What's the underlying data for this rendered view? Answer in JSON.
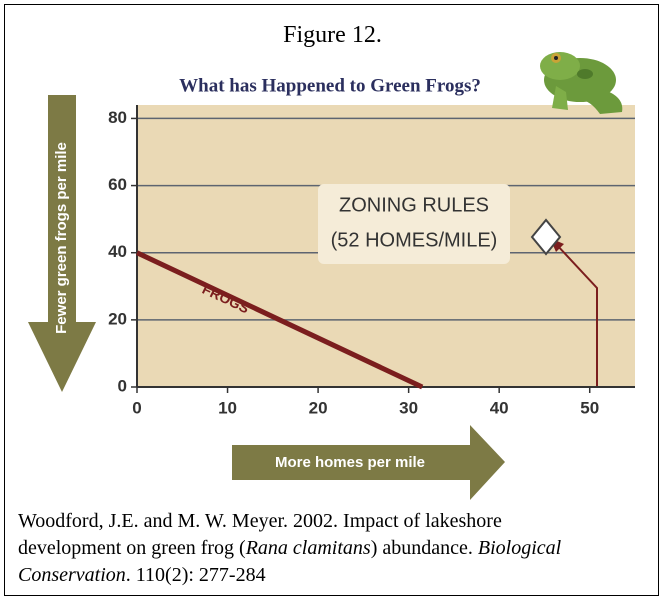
{
  "figure_label": "Figure 12.",
  "chart_data": {
    "type": "line",
    "title": "What has Happened to Green Frogs?",
    "x_label": "More homes per mile",
    "y_label": "Fewer green frogs per mile",
    "x": [
      0,
      31.5
    ],
    "series": [
      {
        "name": "FROGS",
        "color": "#7b1e1e",
        "values": [
          40,
          0
        ]
      }
    ],
    "xlim": [
      0,
      55
    ],
    "ylim": [
      0,
      84
    ],
    "xticks": [
      0,
      10,
      20,
      30,
      40,
      50
    ],
    "yticks": [
      0,
      20,
      40,
      60,
      80
    ],
    "grid": true,
    "annotation": [
      "ZONING RULES",
      "(52 HOMES/MILE)"
    ]
  },
  "citation": [
    "Woodford, J.E. and M. W. Meyer. 2002. Impact of lakeshore development on green frog (",
    "Rana clamitans",
    ") abundance. ",
    "Biological Conservation",
    ". 110(2): 277-284"
  ]
}
